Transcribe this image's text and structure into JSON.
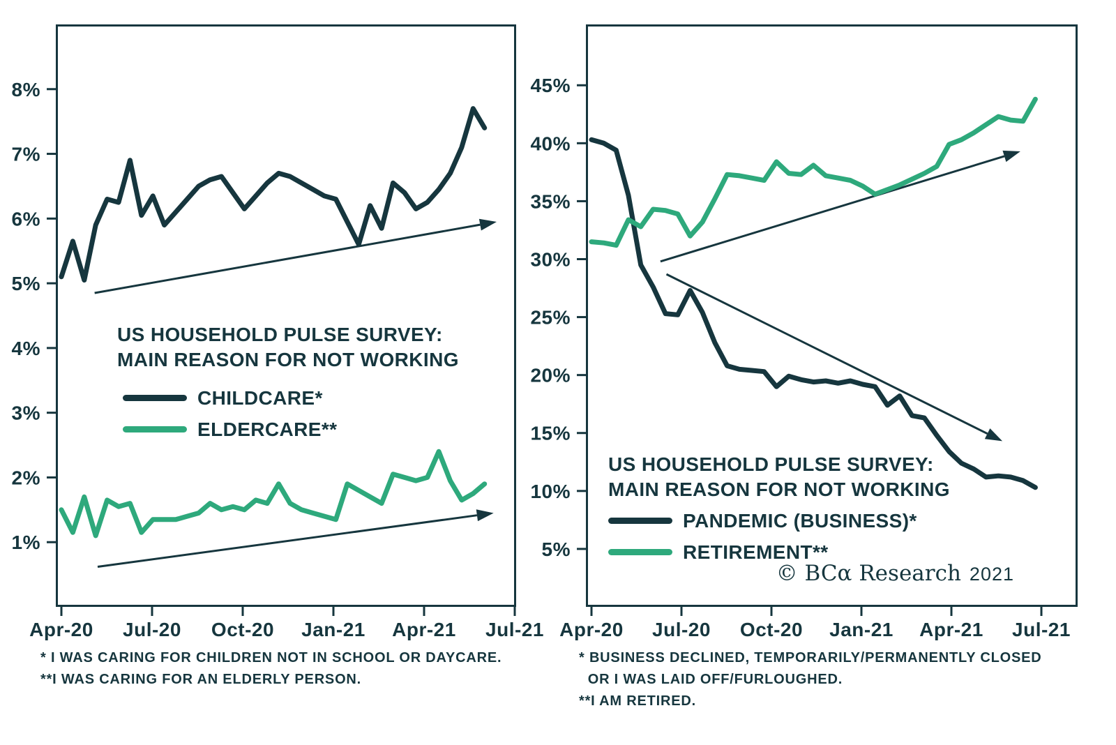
{
  "colors": {
    "dark": "#16363E",
    "green": "#2EA97C",
    "background": "#FFFFFF"
  },
  "branding": {
    "mark": "© BCα Research",
    "year": "2021"
  },
  "chart_data": [
    {
      "type": "line",
      "title": "US HOUSEHOLD PULSE SURVEY:\nMAIN REASON FOR NOT WORKING",
      "xlabel": "",
      "ylabel": "",
      "x_unit": "months since Apr-2020",
      "xlim_months": [
        0,
        15
      ],
      "ylim": [
        0,
        9
      ],
      "y_ticks": [
        1,
        2,
        3,
        4,
        5,
        6,
        7,
        8
      ],
      "y_tick_labels": [
        "1%",
        "2%",
        "3%",
        "4%",
        "5%",
        "6%",
        "7%",
        "8%"
      ],
      "x_tick_months": [
        0,
        3,
        6,
        9,
        12,
        15
      ],
      "x_tick_labels": [
        "Apr-20",
        "Jul-20",
        "Oct-20",
        "Jan-21",
        "Apr-21",
        "Jul-21"
      ],
      "grid": false,
      "legend_position": "inside-left-middle",
      "series": [
        {
          "name": "CHILDCARE*",
          "color_key": "dark",
          "x_range_months": [
            0,
            14
          ],
          "values": [
            5.1,
            5.65,
            5.05,
            5.9,
            6.3,
            6.25,
            6.9,
            6.05,
            6.35,
            5.9,
            6.1,
            6.3,
            6.5,
            6.6,
            6.65,
            6.4,
            6.15,
            6.35,
            6.55,
            6.7,
            6.65,
            6.55,
            6.45,
            6.35,
            6.3,
            5.95,
            5.6,
            6.2,
            5.85,
            6.55,
            6.4,
            6.15,
            6.25,
            6.45,
            6.7,
            7.1,
            7.7,
            7.4
          ]
        },
        {
          "name": "ELDERCARE**",
          "color_key": "green",
          "x_range_months": [
            0,
            14
          ],
          "values": [
            1.5,
            1.15,
            1.7,
            1.1,
            1.65,
            1.55,
            1.6,
            1.15,
            1.35,
            1.35,
            1.35,
            1.4,
            1.45,
            1.6,
            1.5,
            1.55,
            1.5,
            1.65,
            1.6,
            1.9,
            1.6,
            1.5,
            1.45,
            1.4,
            1.35,
            1.9,
            1.8,
            1.7,
            1.6,
            2.05,
            2.0,
            1.95,
            2.0,
            2.4,
            1.95,
            1.65,
            1.75,
            1.9
          ]
        }
      ],
      "trend_arrows": [
        {
          "from": [
            1.1,
            4.85
          ],
          "to": [
            14.4,
            5.95
          ]
        },
        {
          "from": [
            1.2,
            0.62
          ],
          "to": [
            14.3,
            1.45
          ]
        }
      ],
      "footnotes": [
        "* I WAS CARING FOR CHILDREN NOT IN SCHOOL OR DAYCARE.",
        "**I WAS CARING FOR AN ELDERLY PERSON."
      ]
    },
    {
      "type": "line",
      "title": "US HOUSEHOLD PULSE SURVEY:\nMAIN REASON FOR NOT WORKING",
      "xlabel": "",
      "ylabel": "",
      "x_unit": "months since Apr-2020",
      "xlim_months": [
        0,
        15
      ],
      "ylim": [
        0,
        50.25
      ],
      "y_ticks": [
        5,
        10,
        15,
        20,
        25,
        30,
        35,
        40,
        45
      ],
      "y_tick_labels": [
        "5%",
        "10%",
        "15%",
        "20%",
        "25%",
        "30%",
        "35%",
        "40%",
        "45%"
      ],
      "x_tick_months": [
        0,
        3,
        6,
        9,
        12,
        15
      ],
      "x_tick_labels": [
        "Apr-20",
        "Jul-20",
        "Oct-20",
        "Jan-21",
        "Apr-21",
        "Jul-21"
      ],
      "grid": false,
      "legend_position": "inside-left-bottom",
      "series": [
        {
          "name": "PANDEMIC (BUSINESS)*",
          "color_key": "dark",
          "x_range_months": [
            0,
            14.8
          ],
          "values": [
            40.3,
            40.0,
            39.4,
            35.5,
            29.5,
            27.6,
            25.3,
            25.2,
            27.3,
            25.4,
            22.8,
            20.8,
            20.5,
            20.4,
            20.3,
            19.0,
            19.9,
            19.6,
            19.4,
            19.5,
            19.3,
            19.5,
            19.2,
            19.0,
            17.4,
            18.2,
            16.5,
            16.3,
            14.8,
            13.4,
            12.4,
            11.9,
            11.2,
            11.3,
            11.2,
            10.9,
            10.3
          ]
        },
        {
          "name": "RETIREMENT**",
          "color_key": "green",
          "x_range_months": [
            0,
            14.8
          ],
          "values": [
            31.5,
            31.4,
            31.2,
            33.4,
            32.8,
            34.3,
            34.2,
            33.9,
            32.0,
            33.2,
            35.2,
            37.3,
            37.2,
            37.0,
            36.8,
            38.4,
            37.4,
            37.3,
            38.1,
            37.2,
            37.0,
            36.8,
            36.3,
            35.6,
            36.0,
            36.4,
            36.9,
            37.4,
            38.0,
            39.9,
            40.3,
            40.9,
            41.6,
            42.3,
            42.0,
            41.9,
            43.8
          ]
        }
      ],
      "trend_arrows": [
        {
          "from": [
            2.3,
            29.8
          ],
          "to": [
            14.3,
            39.3
          ]
        },
        {
          "from": [
            2.5,
            28.7
          ],
          "to": [
            13.7,
            14.3
          ]
        }
      ],
      "footnotes": [
        "* BUSINESS DECLINED, TEMPORARILY/PERMANENTLY CLOSED",
        "  OR I WAS LAID OFF/FURLOUGHED.",
        "**I AM RETIRED."
      ]
    }
  ]
}
